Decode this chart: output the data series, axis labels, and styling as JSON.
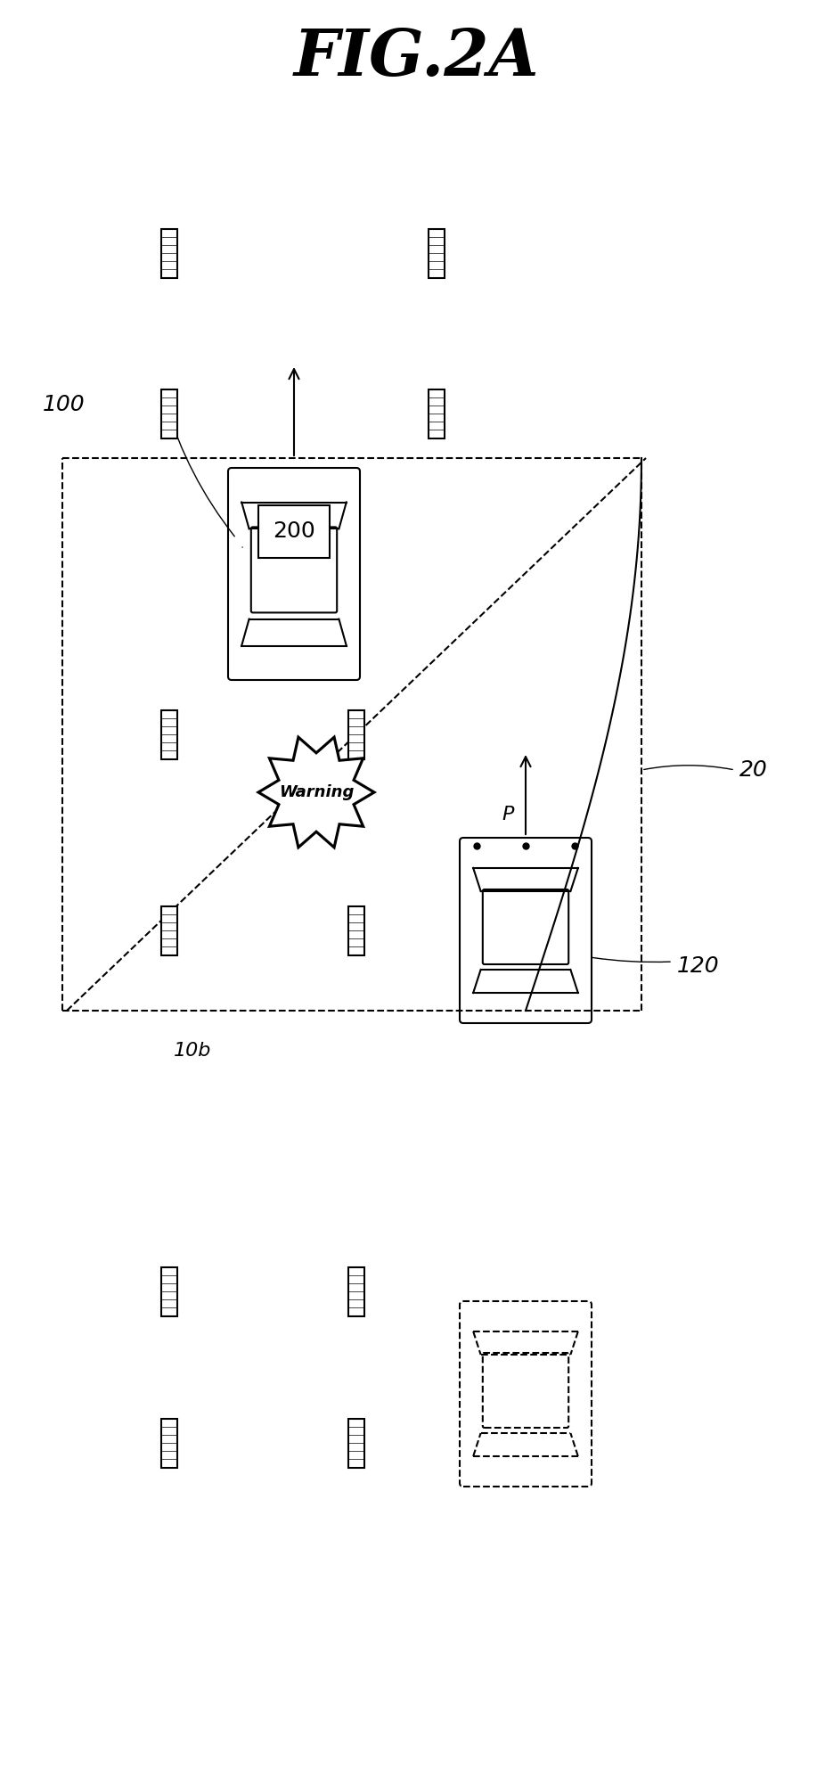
{
  "title": "FIG.2A",
  "bg_color": "#ffffff",
  "line_color": "#000000",
  "fig_width": 9.35,
  "fig_height": 20.04,
  "labels": {
    "fig_title": "FIG.2A",
    "label_100": "100",
    "label_200": "200",
    "label_10b": "10b",
    "label_20": "20",
    "label_120": "120",
    "label_P": "P",
    "label_warning": "Warning"
  }
}
